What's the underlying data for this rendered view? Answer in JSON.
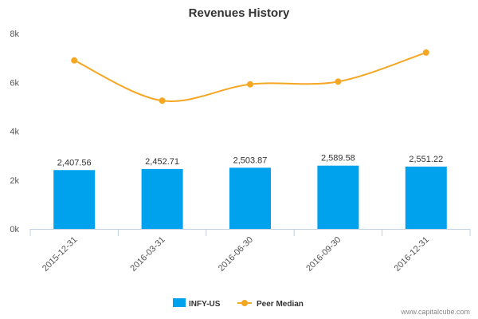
{
  "chart_data": {
    "type": "bar",
    "title": "Revenues History",
    "categories": [
      "2015-12-31",
      "2016-03-31",
      "2016-06-30",
      "2016-09-30",
      "2016-12-31"
    ],
    "yticks": [
      "0k",
      "2k",
      "4k",
      "6k",
      "8k"
    ],
    "ylim": [
      0,
      8000
    ],
    "grid": false,
    "legend_position": "bottom",
    "series": [
      {
        "name": "INFY-US",
        "type": "bar",
        "color": "#00a2ee",
        "values": [
          2407.56,
          2452.71,
          2503.87,
          2589.58,
          2551.22
        ],
        "labels": [
          "2,407.56",
          "2,452.71",
          "2,503.87",
          "2,589.58",
          "2,551.22"
        ]
      },
      {
        "name": "Peer Median",
        "type": "line",
        "color": "#f5a623",
        "values": [
          6900,
          5250,
          5920,
          6030,
          7220
        ]
      }
    ]
  },
  "credit": "www.capitalcube.com"
}
